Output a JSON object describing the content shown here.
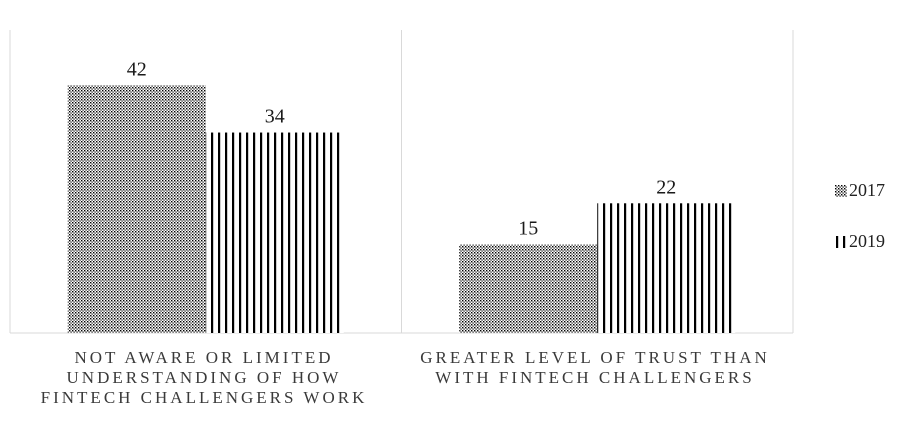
{
  "chart_data": {
    "type": "bar",
    "categories": [
      "NOT AWARE OR LIMITED UNDERSTANDING OF HOW FINTECH CHALLENGERS WORK",
      "GREATER LEVEL OF TRUST THAN WITH FINTECH CHALLENGERS"
    ],
    "series": [
      {
        "name": "2017",
        "values": [
          42,
          15
        ],
        "pattern": "dots"
      },
      {
        "name": "2019",
        "values": [
          34,
          22
        ],
        "pattern": "vertical-lines"
      }
    ],
    "ylim": [
      0,
      48
    ],
    "grid": false,
    "legend_position": "right",
    "title": "",
    "xlabel": "",
    "ylabel": ""
  },
  "colors": {
    "bar_pattern": "#000000",
    "axis": "#d9d9d9",
    "label": "#3a3a3a"
  }
}
